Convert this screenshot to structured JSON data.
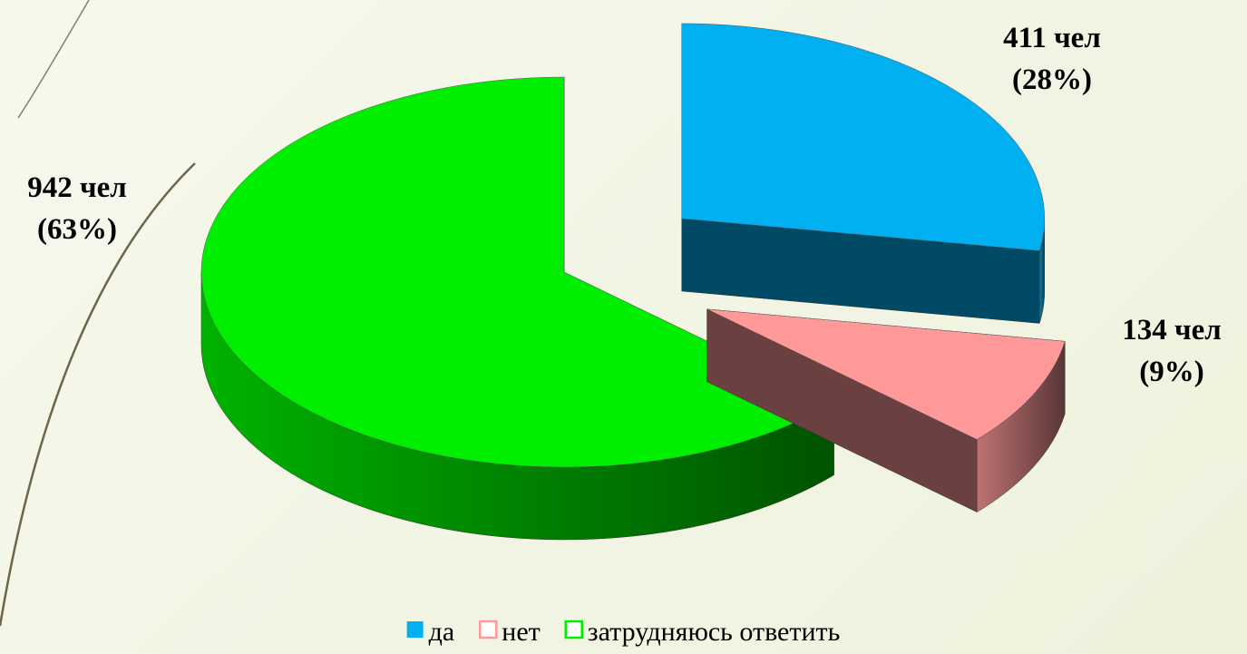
{
  "chart_data": {
    "type": "pie3d",
    "categories": [
      "да",
      "нет",
      "затрудняюсь ответить"
    ],
    "values": [
      411,
      134,
      942
    ],
    "value_labels": [
      "411 чел",
      "134 чел",
      "942 чел"
    ],
    "percents": [
      28,
      9,
      63
    ],
    "percent_labels": [
      "(28%)",
      "(9%)",
      "(63%)"
    ],
    "colors": [
      "#00b0f0",
      "#ff9999",
      "#00ee00"
    ],
    "legend": "bottom"
  }
}
